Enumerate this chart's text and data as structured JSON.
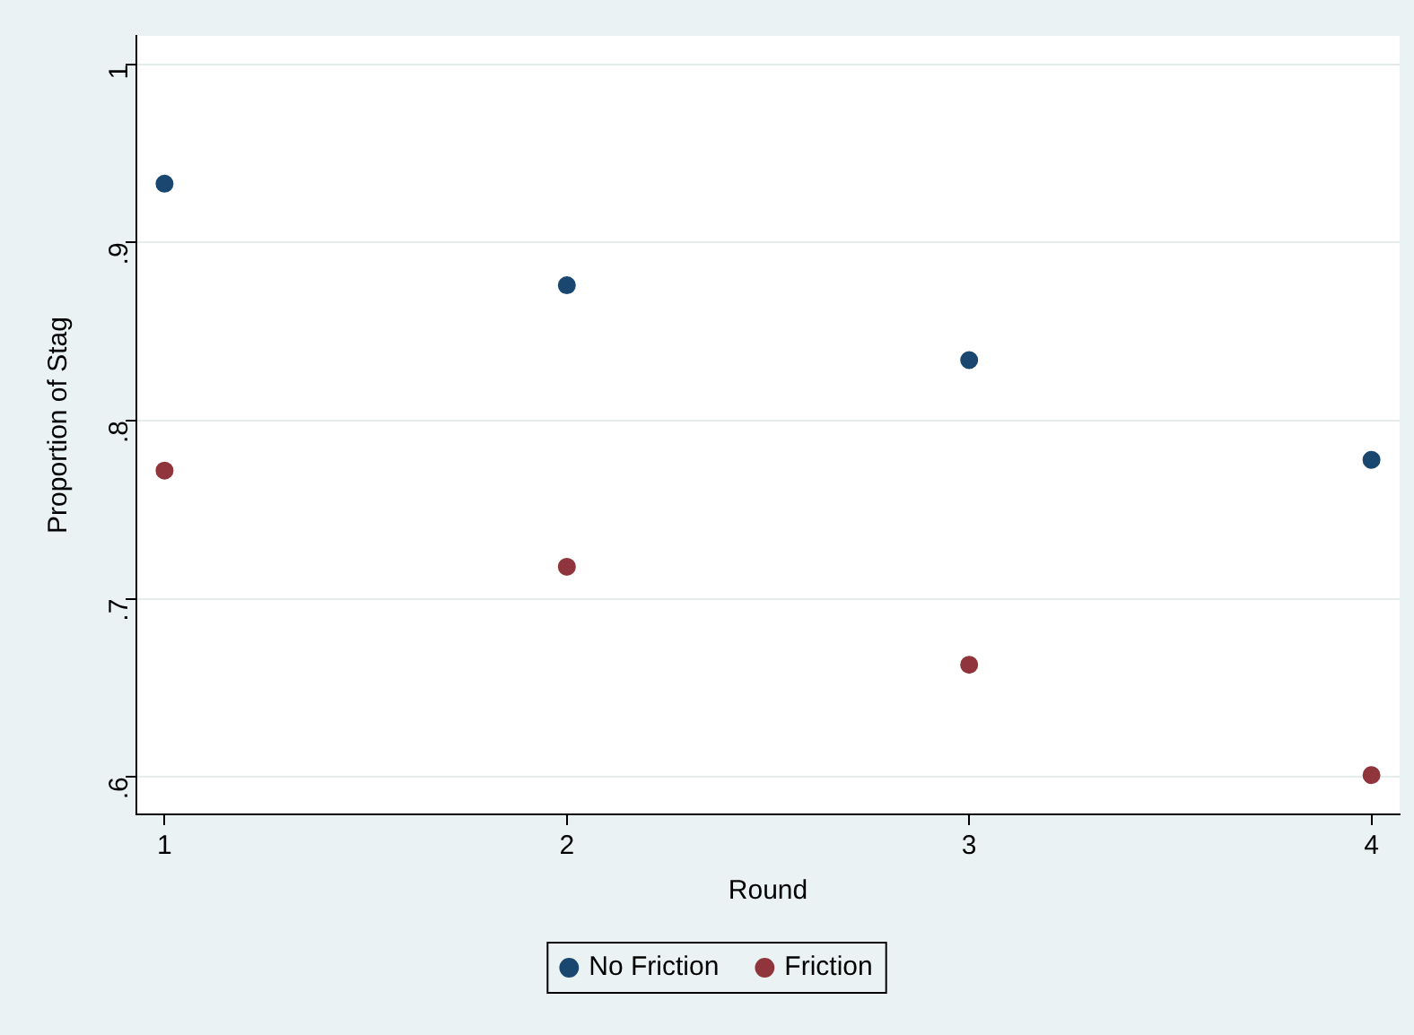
{
  "chart_data": {
    "type": "scatter",
    "xlabel": "Round",
    "ylabel": "Proportion of Stag",
    "x": [
      1,
      2,
      3,
      4
    ],
    "series": [
      {
        "name": "No Friction",
        "color": "#1a476f",
        "values": [
          0.933,
          0.876,
          0.834,
          0.778
        ]
      },
      {
        "name": "Friction",
        "color": "#90353b",
        "values": [
          0.772,
          0.718,
          0.663,
          0.601
        ]
      }
    ],
    "xlim": [
      0.93,
      4.07
    ],
    "xticks": [
      1,
      2,
      3,
      4
    ],
    "ylim": [
      0.579,
      1.016
    ],
    "yticks": [
      {
        "value": 0.6,
        "label": ".6"
      },
      {
        "value": 0.7,
        "label": ".7"
      },
      {
        "value": 0.8,
        "label": ".8"
      },
      {
        "value": 0.9,
        "label": ".9"
      },
      1
    ],
    "grid": "y",
    "legend": "bottom",
    "marker": "circle"
  }
}
